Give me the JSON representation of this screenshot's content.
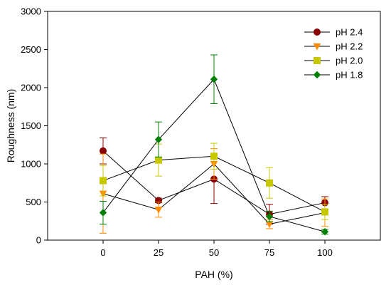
{
  "chart_data": {
    "type": "line",
    "title": "",
    "xlabel": "PAH (%)",
    "ylabel": "Roughness (nm)",
    "x": [
      0,
      25,
      50,
      75,
      100
    ],
    "x_tick_labels": [
      "0",
      "25",
      "50",
      "75",
      "100"
    ],
    "xlim": [
      -25,
      125
    ],
    "ylim": [
      0,
      3000
    ],
    "y_ticks": [
      0,
      500,
      1000,
      1500,
      2000,
      2500,
      3000
    ],
    "y_tick_labels": [
      "0",
      "500",
      "1000",
      "1500",
      "2000",
      "2500",
      "3000"
    ],
    "grid": false,
    "legend_position": "top-right",
    "series": [
      {
        "name": "pH 2.4",
        "color": "#8B0000",
        "marker": "circle",
        "values": [
          1170,
          520,
          800,
          340,
          490
        ],
        "errors": [
          170,
          30,
          320,
          130,
          80
        ]
      },
      {
        "name": "pH 2.2",
        "color": "#FF8C00",
        "marker": "triangle-down",
        "values": [
          610,
          400,
          1000,
          210,
          360
        ],
        "errors": [
          520,
          100,
          200,
          60,
          180
        ]
      },
      {
        "name": "pH 2.0",
        "color": "#C8C800",
        "marker": "square",
        "values": [
          780,
          1050,
          1100,
          750,
          370
        ],
        "errors": [
          200,
          210,
          170,
          200,
          100
        ]
      },
      {
        "name": "pH 1.8",
        "color": "#008000",
        "marker": "diamond",
        "values": [
          360,
          1320,
          2110,
          310,
          110
        ],
        "errors": [
          150,
          230,
          320,
          70,
          30
        ]
      }
    ]
  }
}
